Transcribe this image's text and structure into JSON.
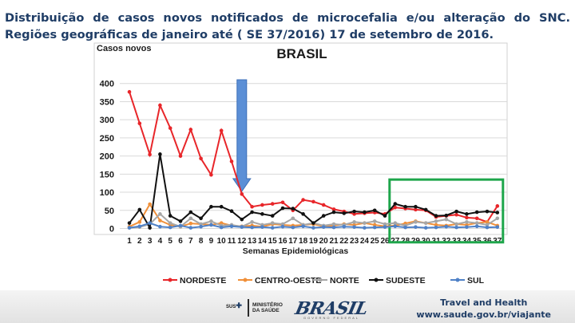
{
  "page_title": "Distribuição de casos novos notificados de microcefalia e/ou alteração do SNC. Regiões geográficas de janeiro até ( SE 37/2016) 17 de setembro de 2016.",
  "footer": {
    "travel_line1": "Travel and Health",
    "travel_line2": "www.saude.gov.br/viajante",
    "sus_label": "SUS",
    "ministerio_label": "MINISTÉRIO\nDA SAÚDE",
    "brasil_logo_text": "BRASIL",
    "brasil_logo_tagline": "GOVERNO FEDERAL"
  },
  "chart_data": {
    "type": "line",
    "title": "BRASIL",
    "ylabel": "Casos novos",
    "xlabel": "Semanas Epidemiológicas",
    "ylim": [
      0,
      400
    ],
    "yticks": [
      0,
      50,
      100,
      150,
      200,
      250,
      300,
      350,
      400
    ],
    "categories": [
      "1",
      "2",
      "3",
      "4",
      "5",
      "6",
      "7",
      "8",
      "9",
      "10",
      "11",
      "12",
      "13",
      "14",
      "15",
      "16",
      "17",
      "18",
      "19",
      "20",
      "21",
      "22",
      "23",
      "24",
      "25",
      "26",
      "27",
      "28",
      "29",
      "30",
      "31",
      "32",
      "33",
      "34",
      "35",
      "36",
      "37"
    ],
    "series": [
      {
        "name": "NORDESTE",
        "color": "#e8262a",
        "values": [
          377,
          290,
          204,
          340,
          277,
          200,
          273,
          193,
          148,
          270,
          185,
          95,
          60,
          65,
          68,
          72,
          50,
          79,
          74,
          65,
          53,
          47,
          40,
          42,
          44,
          40,
          58,
          55,
          52,
          50,
          32,
          35,
          38,
          30,
          28,
          18,
          62
        ]
      },
      {
        "name": "CENTRO-OESTE",
        "color": "#f0903a",
        "values": [
          5,
          18,
          67,
          22,
          10,
          5,
          14,
          12,
          10,
          15,
          8,
          6,
          8,
          5,
          12,
          10,
          8,
          10,
          12,
          6,
          8,
          12,
          10,
          15,
          10,
          6,
          8,
          14,
          20,
          15,
          10,
          8,
          12,
          10,
          15,
          18,
          8
        ]
      },
      {
        "name": "NORTE",
        "color": "#a6a6a6",
        "values": [
          2,
          4,
          12,
          40,
          15,
          5,
          28,
          12,
          20,
          8,
          10,
          5,
          18,
          10,
          15,
          12,
          28,
          10,
          15,
          8,
          12,
          10,
          18,
          15,
          20,
          12,
          15,
          8,
          18,
          15,
          20,
          25,
          12,
          18,
          15,
          10,
          28
        ]
      },
      {
        "name": "SUDESTE",
        "color": "#111111",
        "values": [
          15,
          52,
          2,
          205,
          35,
          20,
          45,
          28,
          60,
          60,
          48,
          25,
          45,
          40,
          35,
          56,
          55,
          40,
          15,
          35,
          45,
          42,
          47,
          45,
          50,
          35,
          68,
          60,
          60,
          52,
          35,
          36,
          47,
          40,
          45,
          47,
          44
        ]
      },
      {
        "name": "SUL",
        "color": "#4f81c7",
        "values": [
          2,
          6,
          15,
          5,
          3,
          8,
          2,
          5,
          10,
          3,
          6,
          4,
          3,
          4,
          2,
          5,
          3,
          6,
          2,
          4,
          3,
          5,
          4,
          2,
          3,
          4,
          6,
          3,
          4,
          2,
          3,
          5,
          3,
          4,
          6,
          3,
          4
        ]
      }
    ],
    "arrow_at_week": "12",
    "highlight_weeks": [
      "27",
      "37"
    ],
    "colors": {
      "arrow": "#5b8fd6",
      "highlight": "#1ea64b",
      "grid": "#d9d9d9",
      "axis_text": "#1a1a1a"
    }
  }
}
